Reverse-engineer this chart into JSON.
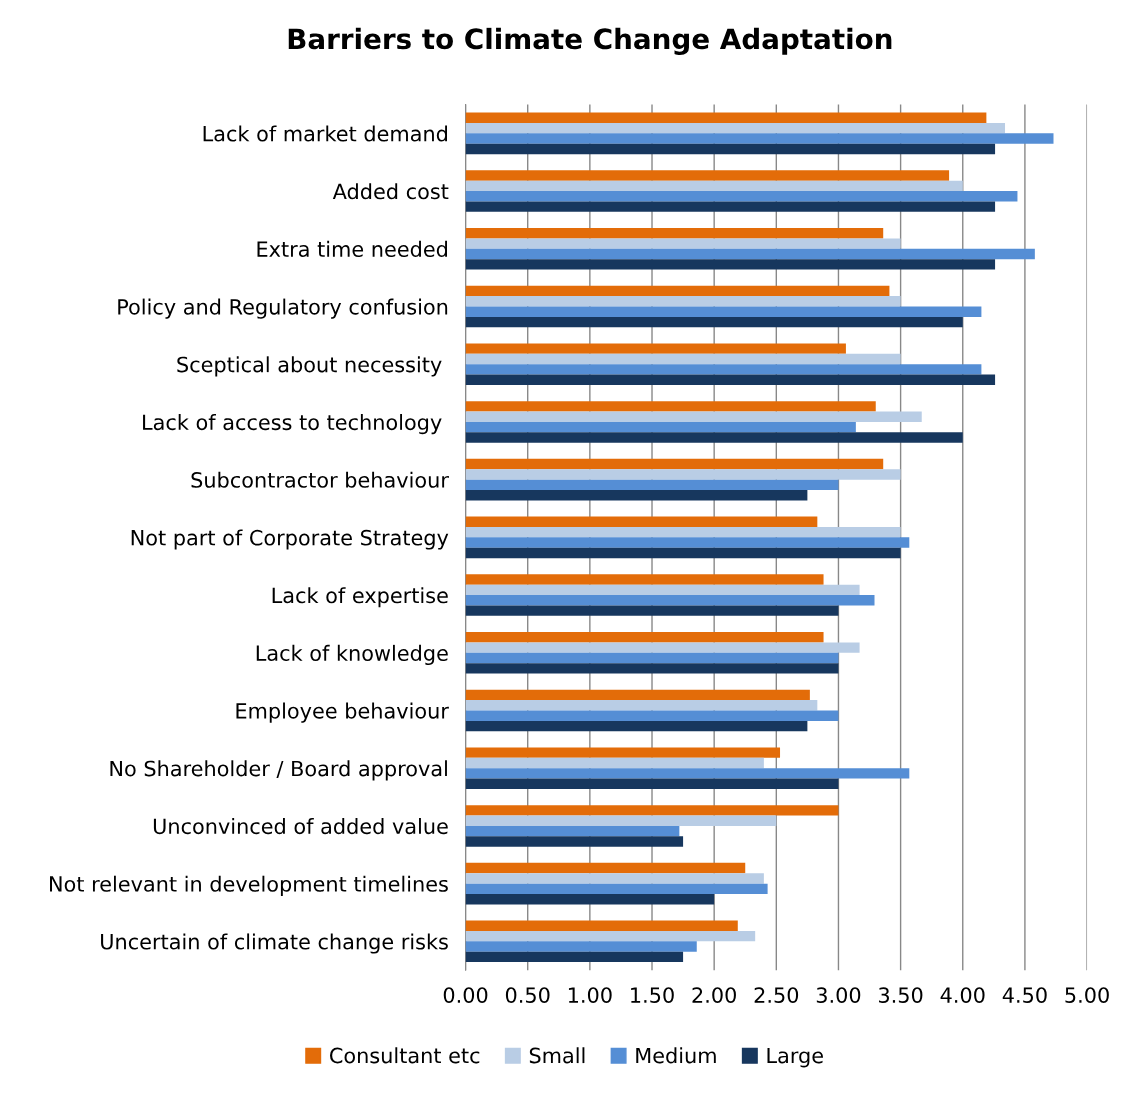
{
  "chart_data": {
    "type": "bar",
    "orientation": "horizontal",
    "title": "Barriers to Climate Change Adaptation",
    "categories": [
      "Lack of market demand",
      "Added cost",
      "Extra time needed",
      "Policy and Regulatory confusion",
      "Sceptical about necessity ",
      "Lack of access to technology ",
      "Subcontractor behaviour",
      "Not part of Corporate Strategy",
      "Lack of expertise",
      "Lack of knowledge",
      "Employee behaviour",
      "No Shareholder / Board approval",
      "Unconvinced of added value",
      "Not relevant in development timelines",
      "Uncertain of climate change risks"
    ],
    "series": [
      {
        "name": "Consultant etc",
        "color": "#e36c09",
        "values": [
          4.19,
          3.89,
          3.36,
          3.41,
          3.06,
          3.3,
          3.36,
          2.83,
          2.88,
          2.88,
          2.77,
          2.53,
          3.0,
          2.25,
          2.19
        ]
      },
      {
        "name": "Small",
        "color": "#b9cde5",
        "values": [
          4.34,
          4.0,
          3.5,
          3.5,
          3.5,
          3.67,
          3.5,
          3.5,
          3.17,
          3.17,
          2.83,
          2.4,
          2.5,
          2.4,
          2.33
        ]
      },
      {
        "name": "Medium",
        "color": "#558ed5",
        "values": [
          4.73,
          4.44,
          4.58,
          4.15,
          4.15,
          3.14,
          3.0,
          3.57,
          3.29,
          3.0,
          3.0,
          3.57,
          1.72,
          2.43,
          1.86
        ]
      },
      {
        "name": "Large",
        "color": "#17375e",
        "values": [
          4.26,
          4.26,
          4.26,
          4.0,
          4.26,
          4.0,
          2.75,
          3.5,
          3.0,
          3.0,
          2.75,
          3.0,
          1.75,
          2.0,
          1.75
        ]
      }
    ],
    "xlim": [
      0,
      5
    ],
    "xticks": [
      {
        "value": 0,
        "label": "0.00"
      },
      {
        "value": 0.5,
        "label": "0.50"
      },
      {
        "value": 1,
        "label": "1.00"
      },
      {
        "value": 1.5,
        "label": "1.50"
      },
      {
        "value": 2,
        "label": "2.00"
      },
      {
        "value": 2.5,
        "label": "2.50"
      },
      {
        "value": 3,
        "label": "3.00"
      },
      {
        "value": 3.5,
        "label": "3.50"
      },
      {
        "value": 4,
        "label": "4.00"
      },
      {
        "value": 4.5,
        "label": "4.50"
      },
      {
        "value": 5,
        "label": "5.00"
      }
    ],
    "grid": "x",
    "legend": "bottom"
  }
}
